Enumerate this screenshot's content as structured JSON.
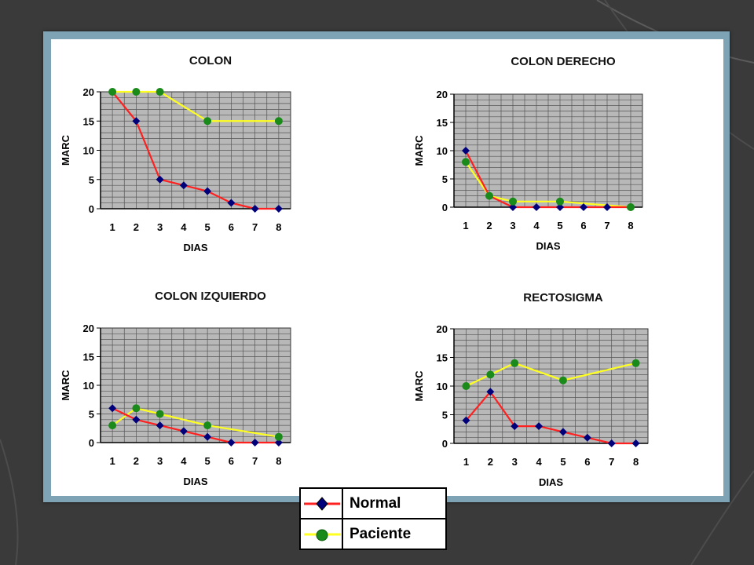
{
  "colors": {
    "normal_line": "#ff2020",
    "normal_marker": "#00007a",
    "patient_line": "#ffff20",
    "patient_marker": "#1a8a1a",
    "plot_bg": "#b8b8b8",
    "grid": "#555555"
  },
  "chart_data": [
    {
      "type": "line",
      "title": "COLON",
      "xlabel": "DIAS",
      "ylabel": "MARC",
      "x": [
        1,
        2,
        3,
        4,
        5,
        6,
        7,
        8
      ],
      "ylim": [
        0,
        20
      ],
      "yticks": [
        0,
        5,
        10,
        15,
        20
      ],
      "grid": true,
      "series": [
        {
          "name": "Normal",
          "x": [
            1,
            2,
            3,
            4,
            5,
            6,
            7,
            8
          ],
          "values": [
            20,
            15,
            5,
            4,
            3,
            1,
            0,
            0
          ]
        },
        {
          "name": "Paciente",
          "x": [
            1,
            2,
            3,
            5,
            8
          ],
          "values": [
            20,
            20,
            20,
            15,
            15
          ]
        }
      ]
    },
    {
      "type": "line",
      "title": "COLON DERECHO",
      "xlabel": "DIAS",
      "ylabel": "MARC",
      "x": [
        1,
        2,
        3,
        4,
        5,
        6,
        7,
        8
      ],
      "ylim": [
        0,
        20
      ],
      "yticks": [
        0,
        5,
        10,
        15,
        20
      ],
      "grid": true,
      "series": [
        {
          "name": "Normal",
          "x": [
            1,
            2,
            3,
            4,
            5,
            6,
            7,
            8
          ],
          "values": [
            10,
            2,
            0,
            0,
            0,
            0,
            0,
            0
          ]
        },
        {
          "name": "Paciente",
          "x": [
            1,
            2,
            3,
            5,
            8
          ],
          "values": [
            8,
            2,
            1,
            1,
            0
          ]
        }
      ]
    },
    {
      "type": "line",
      "title": "COLON IZQUIERDO",
      "xlabel": "DIAS",
      "ylabel": "MARC",
      "x": [
        1,
        2,
        3,
        4,
        5,
        6,
        7,
        8
      ],
      "ylim": [
        0,
        20
      ],
      "yticks": [
        0,
        5,
        10,
        15,
        20
      ],
      "grid": true,
      "series": [
        {
          "name": "Normal",
          "x": [
            1,
            2,
            3,
            4,
            5,
            6,
            7,
            8
          ],
          "values": [
            6,
            4,
            3,
            2,
            1,
            0,
            0,
            0
          ]
        },
        {
          "name": "Paciente",
          "x": [
            1,
            2,
            3,
            5,
            8
          ],
          "values": [
            3,
            6,
            5,
            3,
            1
          ]
        }
      ]
    },
    {
      "type": "line",
      "title": "RECTOSIGMA",
      "xlabel": "DIAS",
      "ylabel": "MARC",
      "x": [
        1,
        2,
        3,
        4,
        5,
        6,
        7,
        8
      ],
      "ylim": [
        0,
        20
      ],
      "yticks": [
        0,
        5,
        10,
        15,
        20
      ],
      "grid": true,
      "series": [
        {
          "name": "Normal",
          "x": [
            1,
            2,
            3,
            4,
            5,
            6,
            7,
            8
          ],
          "values": [
            4,
            9,
            3,
            3,
            2,
            1,
            0,
            0
          ]
        },
        {
          "name": "Paciente",
          "x": [
            1,
            2,
            3,
            5,
            8
          ],
          "values": [
            10,
            12,
            14,
            11,
            14
          ]
        }
      ]
    }
  ],
  "legend": {
    "items": [
      {
        "label": "Normal",
        "icon": "red-line-blue-diamond-icon"
      },
      {
        "label": "Paciente",
        "icon": "yellow-line-green-circle-icon"
      }
    ]
  }
}
